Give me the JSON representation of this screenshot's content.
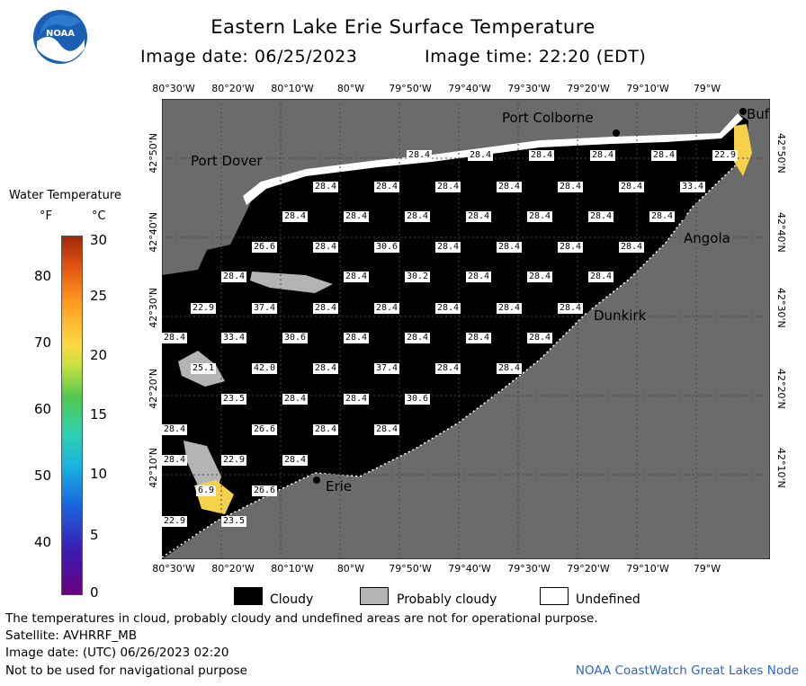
{
  "header": {
    "title": "Eastern Lake Erie Surface Temperature",
    "image_date": "Image date: 06/25/2023",
    "image_time": "Image time: 22:20 (EDT)"
  },
  "map": {
    "lon_labels": [
      "80°30'W",
      "80°20'W",
      "80°10'W",
      "80°W",
      "79°50'W",
      "79°40'W",
      "79°30'W",
      "79°20'W",
      "79°10'W",
      "79°W"
    ],
    "lat_labels": [
      "42°50'N",
      "42°40'N",
      "42°30'N",
      "42°20'N",
      "42°10'N"
    ],
    "cities": [
      "Port Colborne",
      "Port Dover",
      "Angola",
      "Dunkirk",
      "Erie",
      "Buf"
    ],
    "temps": [
      "28.4",
      "33.4",
      "30.6",
      "37.4",
      "25.1",
      "6.9",
      "26.6",
      "42.0",
      "23.5",
      "30.2",
      "22.9"
    ],
    "colors": {
      "land": "#6b6b6b",
      "cloud": "#000000",
      "probably_cloudy": "#b4b4b4",
      "warm_water": "#f5d24a"
    }
  },
  "legend": {
    "title": "Water Temperature",
    "f_label": "°F",
    "c_label": "°C",
    "f_ticks": [
      "80",
      "70",
      "60",
      "50",
      "40"
    ],
    "c_ticks": [
      "30",
      "25",
      "20",
      "15",
      "10",
      "5",
      "0"
    ],
    "cloudy": "Cloudy",
    "probably_cloudy": "Probably cloudy",
    "undefined": "Undefined"
  },
  "footer": {
    "note": "The temperatures in cloud, probably cloudy and undefined areas are not for operational purpose.",
    "satellite": "Satellite: AVHRRF_MB",
    "utc_date": "Image date: (UTC) 06/26/2023  02:20",
    "nav": "Not to be used for navigational purpose",
    "credit": "NOAA CoastWatch Great Lakes Node"
  },
  "logo": {
    "text": "NOAA"
  }
}
